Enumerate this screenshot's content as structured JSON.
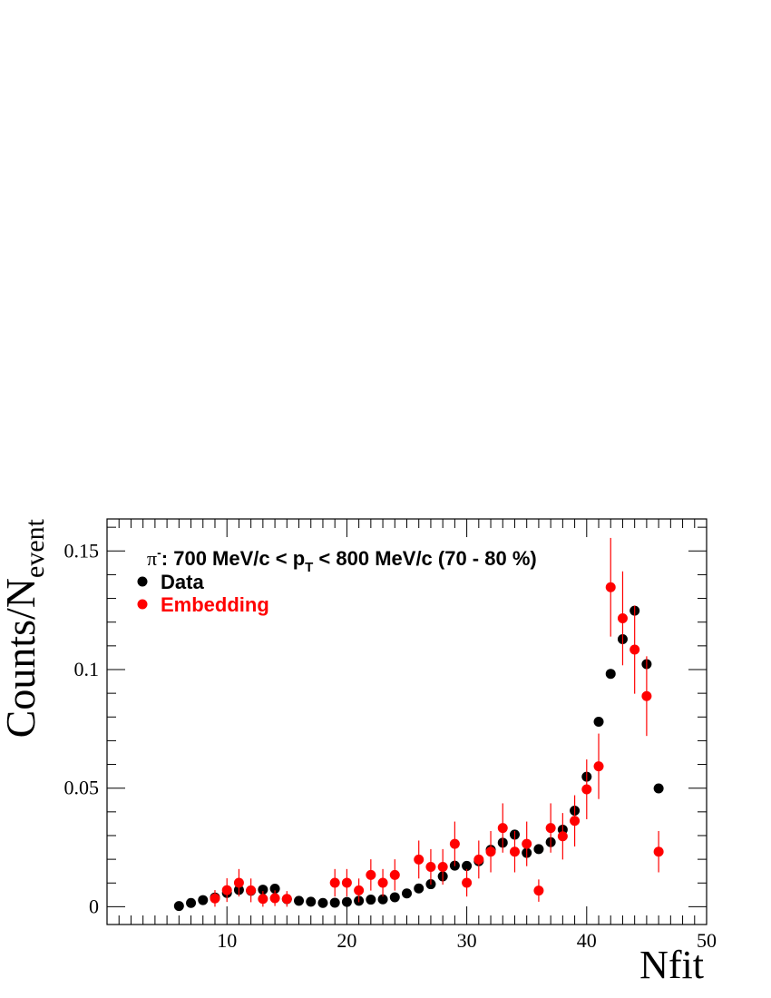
{
  "chart_data": {
    "type": "scatter",
    "annotation": {
      "prefix": "π",
      "charge": "-",
      "mid": ": 700 MeV/c < p",
      "sub": "T",
      "suffix": " < 800 MeV/c (70 - 80 %)"
    },
    "xlabel": "Nfit",
    "ylabel_main": "Counts/N",
    "ylabel_sub": "event",
    "xlim": [
      0,
      50
    ],
    "ylim": [
      -0.0075,
      0.1635
    ],
    "x_ticks": [
      10,
      20,
      30,
      40,
      50
    ],
    "y_ticks": [
      0,
      0.05,
      0.1,
      0.15
    ],
    "y_tick_labels": [
      "0",
      "0.05",
      "0.1",
      "0.15"
    ],
    "grid": false,
    "legend_position": "top-left",
    "series": [
      {
        "name": "Data",
        "color": "#000000",
        "x": [
          6,
          7,
          8,
          9,
          10,
          11,
          12,
          13,
          14,
          15,
          16,
          17,
          18,
          19,
          20,
          21,
          22,
          23,
          24,
          25,
          26,
          27,
          28,
          29,
          30,
          31,
          32,
          33,
          34,
          35,
          36,
          37,
          38,
          39,
          40,
          41,
          42,
          43,
          44,
          45,
          46
        ],
        "y": [
          0.0003,
          0.0016,
          0.0028,
          0.0039,
          0.0058,
          0.0071,
          0.0067,
          0.0072,
          0.0076,
          0.0032,
          0.0025,
          0.0021,
          0.0016,
          0.0017,
          0.002,
          0.0025,
          0.003,
          0.0031,
          0.004,
          0.0056,
          0.0077,
          0.0095,
          0.0128,
          0.0173,
          0.0172,
          0.0192,
          0.024,
          0.027,
          0.0304,
          0.0227,
          0.0243,
          0.0272,
          0.0325,
          0.0405,
          0.0548,
          0.078,
          0.0982,
          0.1128,
          0.1248,
          0.1023,
          0.0499
        ]
      },
      {
        "name": "Embedding",
        "color": "#ff0000",
        "x": [
          9,
          10,
          11,
          12,
          13,
          14,
          15,
          19,
          20,
          21,
          22,
          23,
          24,
          26,
          27,
          28,
          29,
          30,
          31,
          32,
          33,
          34,
          35,
          36,
          37,
          38,
          39,
          40,
          41,
          42,
          43,
          44,
          45,
          46
        ],
        "y": [
          0.0035,
          0.007,
          0.0101,
          0.0069,
          0.0033,
          0.0036,
          0.0033,
          0.0101,
          0.0101,
          0.0069,
          0.0134,
          0.0101,
          0.0134,
          0.0199,
          0.0168,
          0.0168,
          0.0265,
          0.0101,
          0.0199,
          0.0232,
          0.0332,
          0.0232,
          0.0265,
          0.0068,
          0.0332,
          0.0297,
          0.0362,
          0.0495,
          0.0592,
          0.1347,
          0.1216,
          0.1084,
          0.0888,
          0.0232
        ],
        "yerr": [
          0.0035,
          0.005,
          0.0058,
          0.005,
          0.0033,
          0.0033,
          0.0033,
          0.0058,
          0.0058,
          0.005,
          0.0066,
          0.0058,
          0.0066,
          0.008,
          0.0075,
          0.0075,
          0.0094,
          0.0058,
          0.008,
          0.0087,
          0.0104,
          0.0087,
          0.0094,
          0.0047,
          0.0104,
          0.0098,
          0.0108,
          0.0126,
          0.0138,
          0.0208,
          0.0198,
          0.0186,
          0.0168,
          0.0087
        ]
      }
    ]
  }
}
